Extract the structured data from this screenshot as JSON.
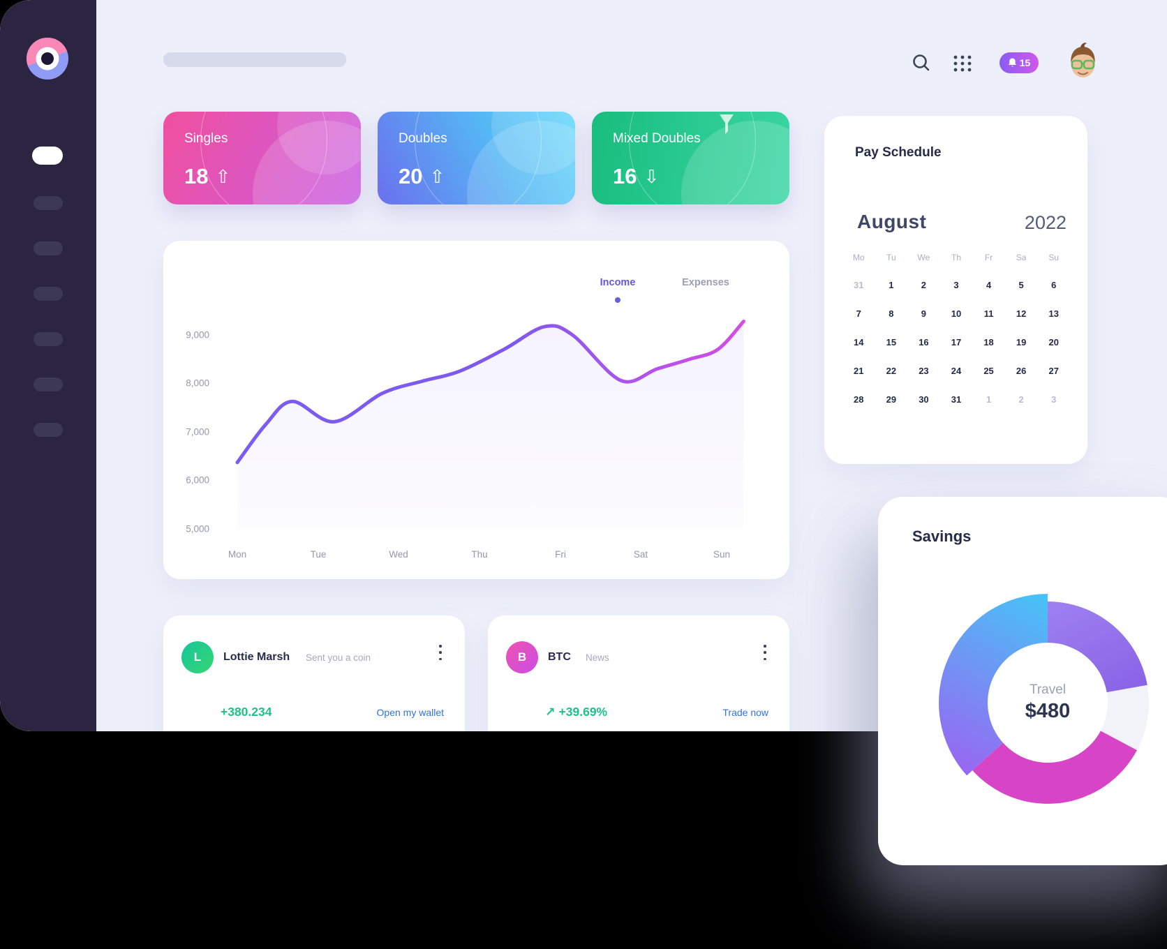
{
  "header": {
    "notification_count": "15",
    "icons": [
      "search-icon",
      "apps-grid-icon",
      "bell-icon",
      "user-avatar"
    ]
  },
  "sidebar": {
    "logo": "brand-logo",
    "active_index": 0,
    "item_count": 7
  },
  "stats": [
    {
      "label": "Singles",
      "value": "18",
      "trend": "up",
      "arrow": "⇧",
      "gradient_from": "#f0509e",
      "gradient_to": "#c95be2"
    },
    {
      "label": "Doubles",
      "value": "20",
      "trend": "up",
      "arrow": "⇧",
      "gradient_from": "#6a70ee",
      "gradient_to": "#63d6f9"
    },
    {
      "label": "Mixed Doubles",
      "value": "16",
      "trend": "down",
      "arrow": "⇩",
      "gradient_from": "#19bd7d",
      "gradient_to": "#3ad6a4"
    }
  ],
  "chart_data": {
    "type": "line",
    "title": "",
    "legend": [
      {
        "label": "Income",
        "active": true,
        "color": "#6258e0"
      },
      {
        "label": "Expenses",
        "active": false,
        "color": "#9aa0b5"
      }
    ],
    "x_categories": [
      "Mon",
      "Tue",
      "Wed",
      "Thu",
      "Fri",
      "Sat",
      "Sun"
    ],
    "yticks": [
      "9,000",
      "8,000",
      "7,000",
      "6,000",
      "5,000"
    ],
    "ylim": [
      5000,
      9500
    ],
    "grid": false,
    "series": [
      {
        "name": "Income",
        "day_values": [
          6400,
          7250,
          8000,
          8600,
          8900,
          8300,
          9250
        ],
        "color_start": "#7a5cf0",
        "color_end": "#d44ce6"
      }
    ],
    "points": [
      [
        0,
        6370
      ],
      [
        0.35,
        7150
      ],
      [
        0.68,
        7630
      ],
      [
        1.2,
        7210
      ],
      [
        1.8,
        7800
      ],
      [
        2.3,
        8050
      ],
      [
        2.75,
        8250
      ],
      [
        3.3,
        8700
      ],
      [
        3.8,
        9170
      ],
      [
        4.15,
        9000
      ],
      [
        4.75,
        8060
      ],
      [
        5.2,
        8300
      ],
      [
        5.6,
        8500
      ],
      [
        5.95,
        8700
      ],
      [
        6.27,
        9280
      ]
    ]
  },
  "calendar": {
    "title": "Pay Schedule",
    "month": "August",
    "year": "2022",
    "day_headers": [
      "Mo",
      "Tu",
      "We",
      "Th",
      "Fr",
      "Sa",
      "Su"
    ],
    "cells": [
      {
        "day": "31",
        "muted": true
      },
      {
        "day": "1"
      },
      {
        "day": "2"
      },
      {
        "day": "3"
      },
      {
        "day": "4"
      },
      {
        "day": "5"
      },
      {
        "day": "6"
      },
      {
        "day": "7"
      },
      {
        "day": "8"
      },
      {
        "day": "9"
      },
      {
        "day": "10"
      },
      {
        "day": "11"
      },
      {
        "day": "12"
      },
      {
        "day": "13"
      },
      {
        "day": "14"
      },
      {
        "day": "15"
      },
      {
        "day": "16"
      },
      {
        "day": "17"
      },
      {
        "day": "18"
      },
      {
        "day": "19"
      },
      {
        "day": "20"
      },
      {
        "day": "21"
      },
      {
        "day": "22"
      },
      {
        "day": "23"
      },
      {
        "day": "24"
      },
      {
        "day": "25"
      },
      {
        "day": "26"
      },
      {
        "day": "27"
      },
      {
        "day": "28"
      },
      {
        "day": "29"
      },
      {
        "day": "30"
      },
      {
        "day": "31"
      },
      {
        "day": "1",
        "muted": true
      },
      {
        "day": "2",
        "muted": true
      },
      {
        "day": "3",
        "muted": true
      }
    ]
  },
  "transactions": [
    {
      "initial": "L",
      "name": "Lottie Marsh",
      "subtitle": "Sent you a coin",
      "amount": "+380.234",
      "action": "Open my wallet",
      "avatar_from": "#16c69a",
      "avatar_to": "#37d674"
    },
    {
      "initial": "B",
      "name": "BTC",
      "subtitle": "News",
      "amount": "+39.69%",
      "trend_arrow": "↗",
      "action": "Trade now",
      "avatar_from": "#ee52b0",
      "avatar_to": "#cb4de6"
    }
  ],
  "savings": {
    "title": "Savings",
    "center_label": "Travel",
    "center_value": "$480",
    "chart_type": "donut",
    "segments": [
      {
        "name": "blue",
        "from_deg": 228,
        "to_deg": 360,
        "color_start": "#41c9f7",
        "color_end": "#9c63f1"
      },
      {
        "name": "purple",
        "from_deg": 0,
        "to_deg": 80,
        "color_start": "#9d7ff0",
        "color_end": "#8055e0"
      },
      {
        "name": "gap",
        "from_deg": 80,
        "to_deg": 118,
        "color_start": "#f2f3f9",
        "color_end": "#f2f3f9"
      },
      {
        "name": "magenta",
        "from_deg": 118,
        "to_deg": 228,
        "color_start": "#d844c6",
        "color_end": "#d844c6"
      }
    ]
  },
  "colors": {
    "app_bg": "#edf0fa",
    "sidebar": "#2b2542",
    "black_zone": "#000000",
    "notif_from": "#8a5cf2",
    "notif_to": "#d058ec",
    "positive": "#1ec187",
    "link_blue": "#2f72e4"
  }
}
